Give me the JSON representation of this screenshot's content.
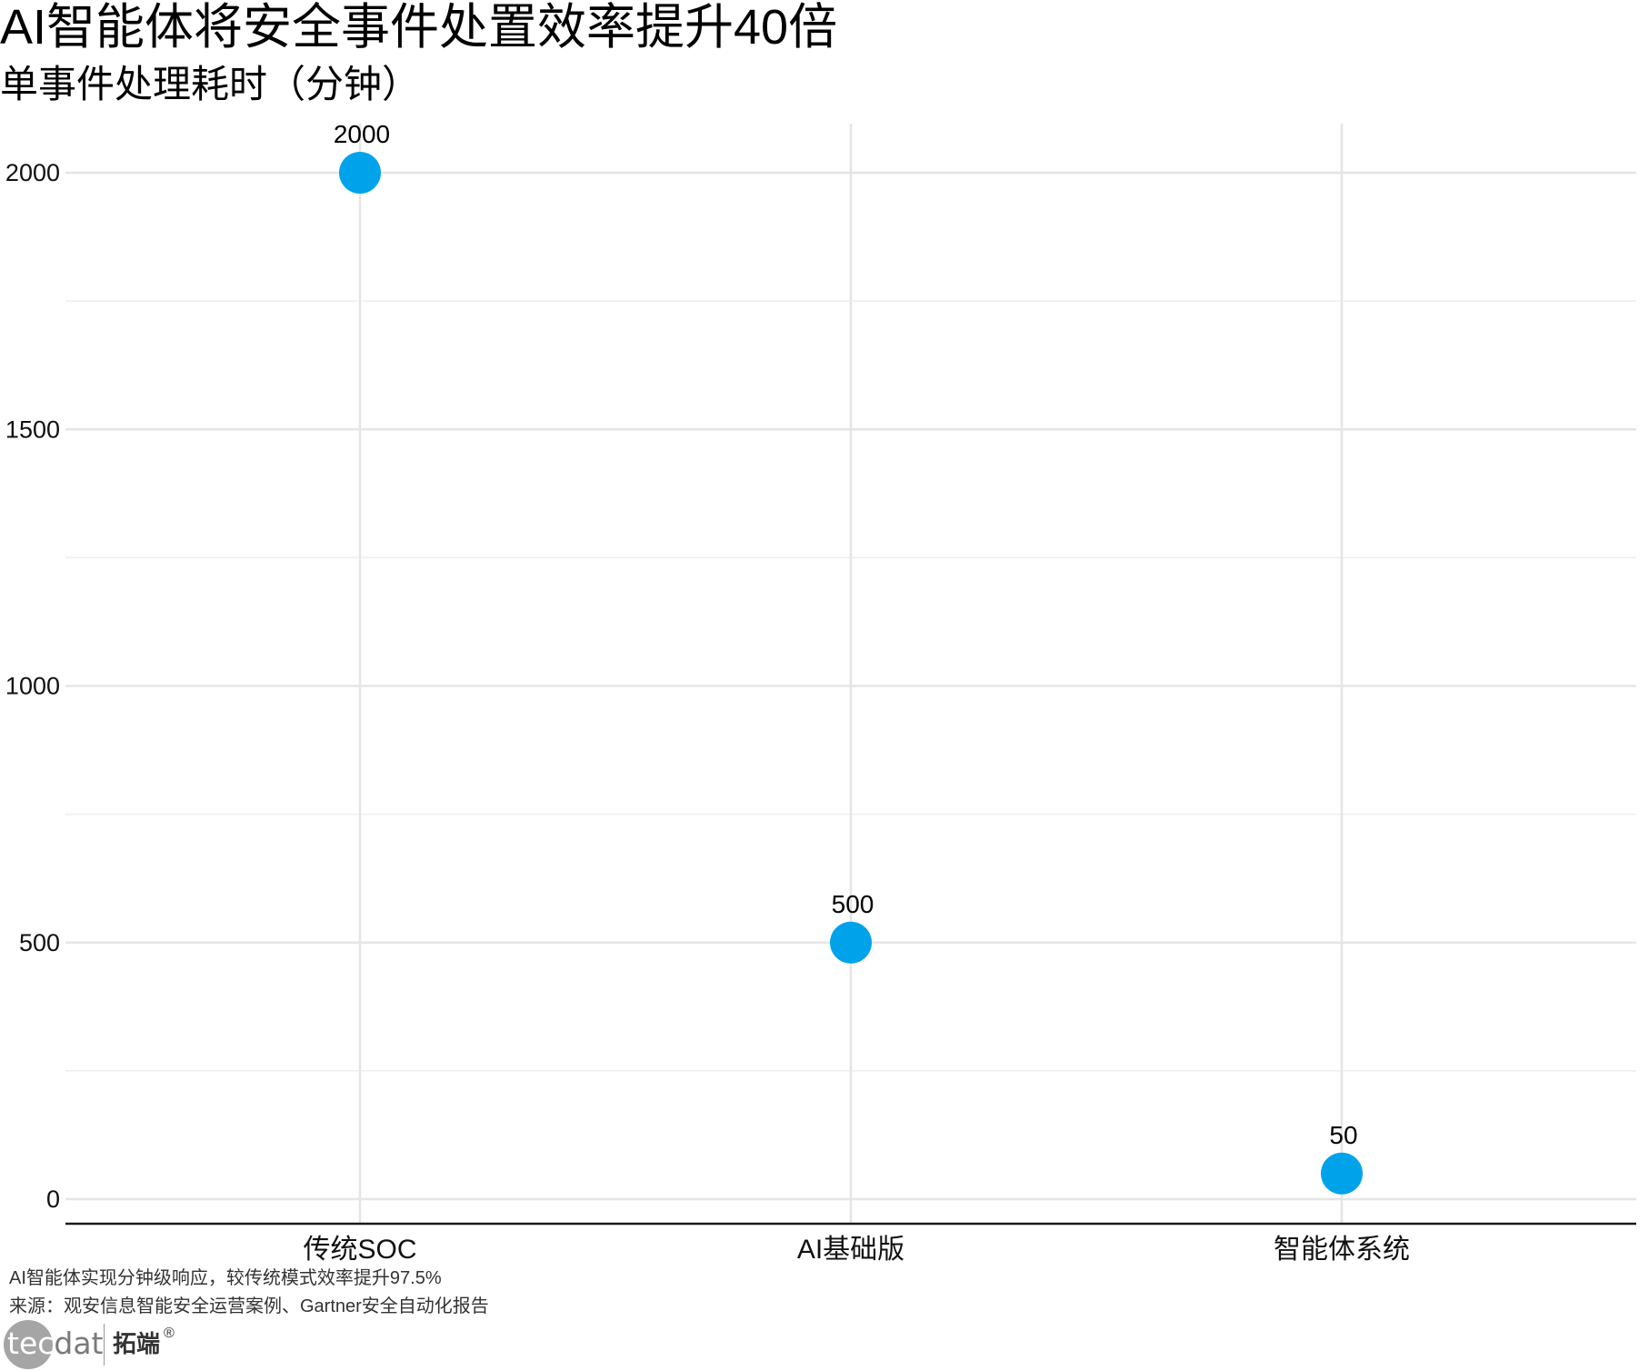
{
  "title": "AI智能体将安全事件处置效率提升40倍",
  "subtitle": "单事件处理耗时（分钟）",
  "chart_data": {
    "type": "scatter",
    "categories": [
      "传统SOC",
      "AI基础版",
      "智能体系统"
    ],
    "values": [
      2000,
      500,
      50
    ],
    "data_labels": [
      "2000",
      "500",
      "50"
    ],
    "y_ticks": [
      0,
      500,
      1000,
      1500,
      2000
    ],
    "ylim": [
      -50,
      2100
    ],
    "grid": true,
    "point_color": "#00a3ea"
  },
  "footer": {
    "caption": "AI智能体实现分钟级响应，较传统模式效率提升97.5%",
    "source": "来源：观安信息智能安全运营案例、Gartner安全自动化报告"
  },
  "brand": {
    "logo_tec": "tec",
    "logo_dat": "dat",
    "name_cn": "拓端",
    "reg": "®"
  }
}
